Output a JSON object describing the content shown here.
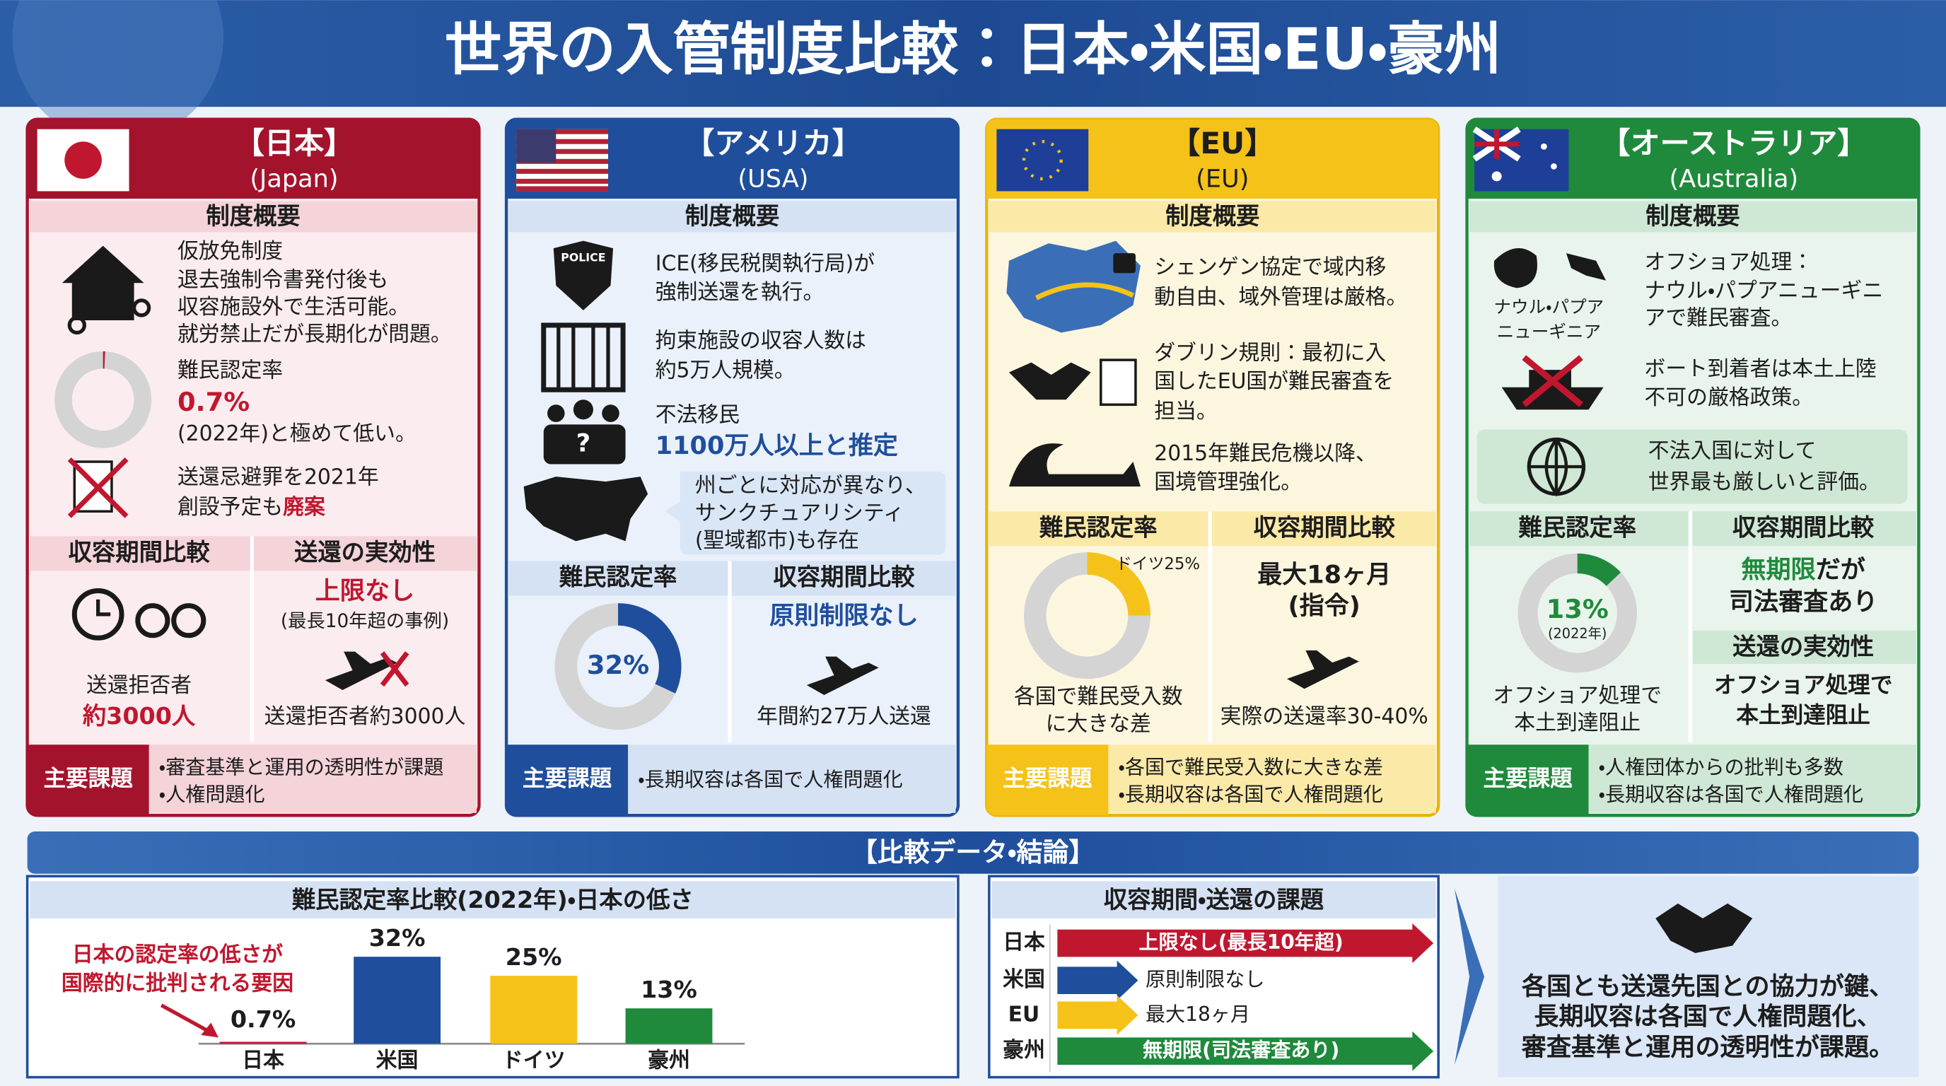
{
  "title": "世界の入管制度比較：日本・米国・EU・豪州",
  "japan": {
    "heading": "【日本】",
    "subheading": "(Japan)",
    "overview": "制度概要",
    "provisional": [
      "仮放免制度",
      "退去強制令書発付後も",
      "収容施設外で生活可能。",
      "就労禁止だが長期化が問題。"
    ],
    "rate": {
      "label": "難民認定率",
      "value": 0.7,
      "value_label": "0.7%",
      "note": "(2022年)と極めて低い。",
      "color": "#c0172f"
    },
    "crime_bill": {
      "line1": "送還忌避罪を2021年",
      "line2": "創設予定も",
      "highlight": "廃案"
    },
    "detention": {
      "label": "収容期間比較",
      "caption": "送還拒否者",
      "count": "約3000人"
    },
    "effectiveness": {
      "label": "送還の実効性",
      "limit": "上限なし",
      "limit_note": "(最長10年超の事例)",
      "note": "送還拒否者約3000人"
    },
    "issues_label": "主要課題",
    "issues": [
      "・審査基準と運用の透明性が課題",
      "・人権問題化"
    ]
  },
  "usa": {
    "heading": "【アメリカ】",
    "subheading": "(USA)",
    "overview": "制度概要",
    "badge": "POLICE",
    "ice": [
      "ICE(移民税関執行局)が",
      "強制送還を執行。"
    ],
    "detention_size": [
      "拘束施設の収容人数は",
      "約5万人規模。"
    ],
    "illegal": {
      "label": "不法移民",
      "estimate": "1100万人以上と推定"
    },
    "sanctuary": [
      "州ごとに対応が異なり、",
      "サンクチュアリシティ",
      "(聖域都市)も存在"
    ],
    "rate": {
      "label": "難民認定率",
      "value": 32,
      "value_label": "32%",
      "color": "#1f4e9c"
    },
    "detention": {
      "label": "収容期間比較",
      "limit": "原則制限なし",
      "removals": "年間約27万人送還"
    },
    "issues_label": "主要課題",
    "issues": [
      "・長期収容は各国で人権問題化"
    ]
  },
  "eu": {
    "heading": "【EU】",
    "subheading": "(EU)",
    "overview": "制度概要",
    "schengen": [
      "シェンゲン協定で域内移",
      "動自由、域外管理は厳格。"
    ],
    "dublin": [
      "ダブリン規則：最初に入",
      "国したEU国が難民審査を",
      "担当。"
    ],
    "crisis": [
      "2015年難民危機以降、",
      "国境管理強化。"
    ],
    "rate": {
      "label": "難民認定率",
      "value": 25,
      "value_label": "ドイツ25%",
      "note": [
        "各国で難民受入数",
        "に大きな差"
      ],
      "color": "#f5c21a"
    },
    "detention": {
      "label": "収容期間比較",
      "limit": "最大18ヶ月",
      "limit_note": "(指令)",
      "removal_rate": "実際の送還率30-40%"
    },
    "issues_label": "主要課題",
    "issues": [
      "・各国で難民受入数に大きな差",
      "・長期収容は各国で人権問題化"
    ]
  },
  "australia": {
    "heading": "【オーストラリア】",
    "subheading": "(Australia)",
    "overview": "制度概要",
    "islands": [
      "ナウル・パプア",
      "ニューギニア"
    ],
    "offshore": [
      "オフショア処理：",
      "ナウル・パプアニューギニ",
      "アで難民審査。"
    ],
    "boats": [
      "ボート到着者は本土上陸",
      "不可の厳格政策。"
    ],
    "strictness": [
      "不法入国に対して",
      "世界最も厳しいと評価。"
    ],
    "rate": {
      "label": "難民認定率",
      "value": 13,
      "value_label": "13%",
      "year": "(2022年)",
      "note": [
        "オフショア処理で",
        "本土到達阻止"
      ],
      "color": "#1f8a3c"
    },
    "detention": {
      "label": "収容期間比較",
      "highlight": "無期限",
      "rest": "だが",
      "line2": "司法審査あり"
    },
    "effectiveness": {
      "label": "送還の実効性",
      "lines": [
        "オフショア処理で",
        "本土到達阻止"
      ]
    },
    "issues_label": "主要課題",
    "issues": [
      "・人権団体からの批判も多数",
      "・長期収容は各国で人権問題化"
    ]
  },
  "comparison": {
    "heading": "【比較データ・結論】",
    "rate_chart": {
      "title": "難民認定率比較(2022年)・日本の低さ",
      "annotation": [
        "日本の認定率の低さが",
        "国際的に批判される要因"
      ],
      "categories": [
        "日本",
        "米国",
        "ドイツ",
        "豪州"
      ],
      "values": [
        0.7,
        32,
        25,
        13
      ],
      "value_labels": [
        "0.7%",
        "32%",
        "25%",
        "13%"
      ],
      "colors": [
        "#c0172f",
        "#1f4e9c",
        "#f5c21a",
        "#1f8a3c"
      ]
    },
    "durations": {
      "title": "収容期間・送還の課題",
      "rows": [
        {
          "country": "日本",
          "text": "上限なし(最長10年超)"
        },
        {
          "country": "米国",
          "text": "原則制限なし"
        },
        {
          "country": "EU",
          "text": "最大18ヶ月"
        },
        {
          "country": "豪州",
          "text": "無期限(司法審査あり)"
        }
      ]
    },
    "conclusion": [
      "各国とも送還先国との協力が鍵、",
      "長期収容は各国で人権問題化、",
      "審査基準と運用の透明性が課題。"
    ]
  }
}
